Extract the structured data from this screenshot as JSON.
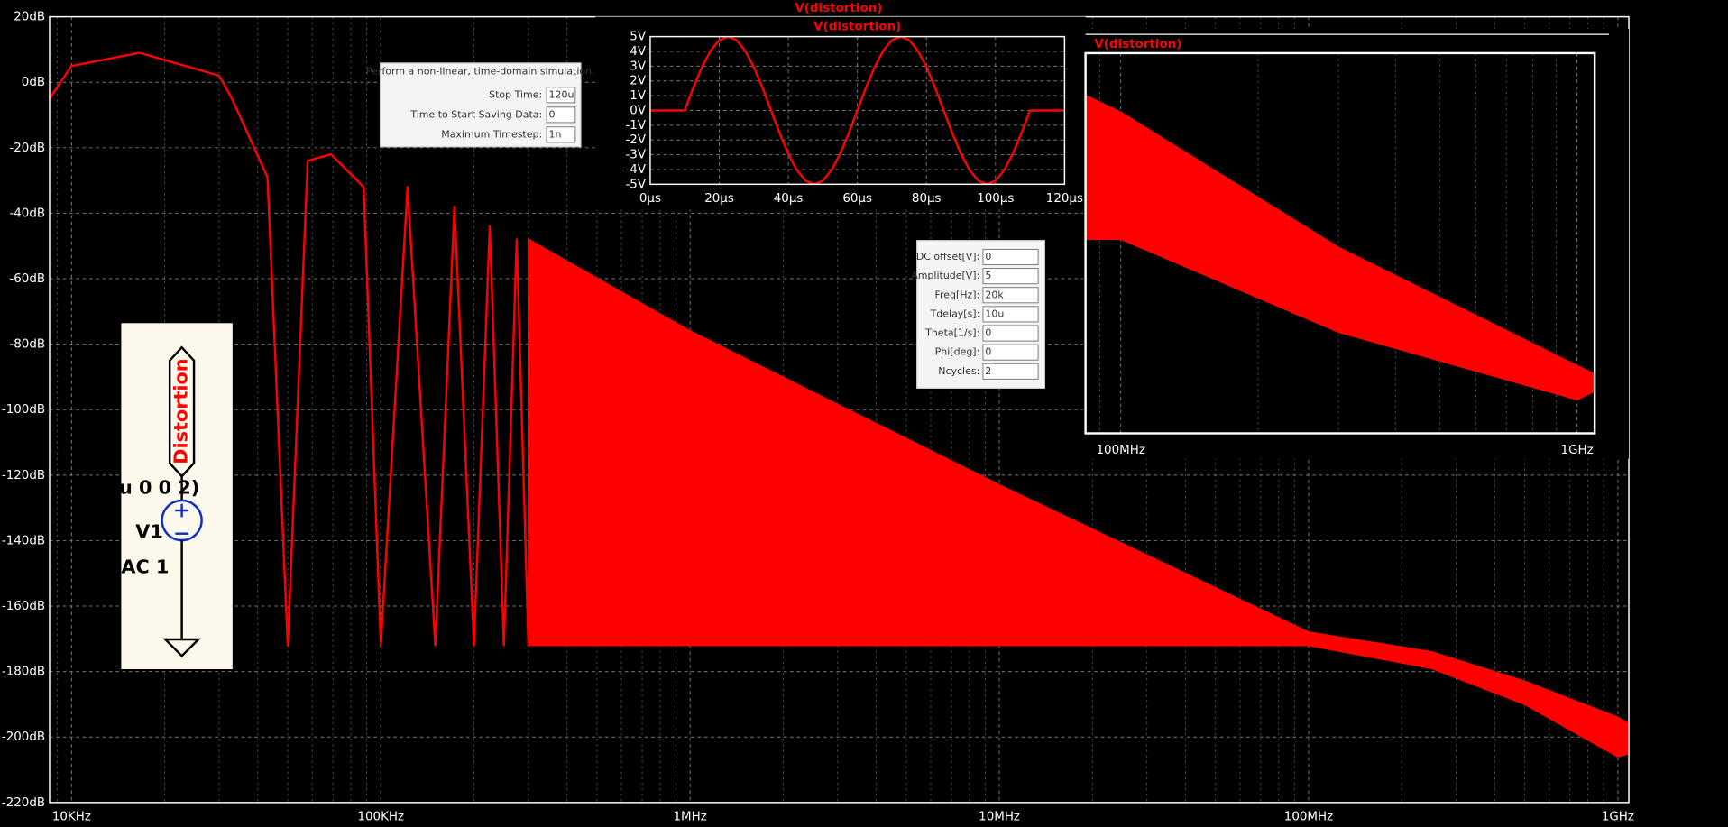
{
  "chart_data": [
    {
      "type": "line",
      "title": "V(distortion)",
      "xscale": "log",
      "xlim": [
        8490,
        1085000000
      ],
      "ylim": [
        -220,
        20
      ],
      "xticks": [
        {
          "value": 10000,
          "label": "10KHz"
        },
        {
          "value": 100000,
          "label": "100KHz"
        },
        {
          "value": 1000000,
          "label": "1MHz"
        },
        {
          "value": 10000000,
          "label": "10MHz"
        },
        {
          "value": 100000000,
          "label": "100MHz"
        },
        {
          "value": 1000000000,
          "label": "1GHz"
        }
      ],
      "yticks": [
        {
          "value": 20,
          "label": "20dB"
        },
        {
          "value": 0,
          "label": "0dB"
        },
        {
          "value": -20,
          "label": "-20dB"
        },
        {
          "value": -40,
          "label": "-40dB"
        },
        {
          "value": -60,
          "label": "-60dB"
        },
        {
          "value": -80,
          "label": "-80dB"
        },
        {
          "value": -100,
          "label": "-100dB"
        },
        {
          "value": -120,
          "label": "-120dB"
        },
        {
          "value": -140,
          "label": "-140dB"
        },
        {
          "value": -160,
          "label": "-160dB"
        },
        {
          "value": -180,
          "label": "-180dB"
        },
        {
          "value": -200,
          "label": "-200dB"
        },
        {
          "value": -220,
          "label": "-220dB"
        }
      ],
      "grid": true,
      "x": [
        8490,
        10000,
        16600,
        30000,
        33000,
        43000,
        50000,
        58000,
        69000,
        88000,
        100000,
        122000,
        150000,
        173000,
        200000,
        225000,
        250000,
        275000,
        300000
      ],
      "series": [
        {
          "color": "#ff0000",
          "values": [
            -5,
            5,
            9,
            2,
            -5,
            -29,
            -172,
            -24,
            -22,
            -32,
            -172,
            -32,
            -172,
            -38,
            -172,
            -44,
            -172,
            -48,
            -172
          ]
        }
      ],
      "band": {
        "color": "#ff0000",
        "x": [
          300000,
          1000000,
          10000000,
          100000000,
          250000000,
          500000000,
          1000000000,
          1085000000
        ],
        "upper": [
          -48,
          -76,
          -123,
          -168,
          -174,
          -183,
          -194,
          -196
        ],
        "lower": [
          -172,
          -172,
          -172,
          -172,
          -179,
          -190,
          -206,
          -205
        ]
      }
    },
    {
      "type": "line",
      "title": "V(distortion)",
      "xlim": [
        0,
        120
      ],
      "ylim": [
        -5,
        5
      ],
      "xticks": [
        {
          "value": 0,
          "label": "0µs"
        },
        {
          "value": 20,
          "label": "20µs"
        },
        {
          "value": 40,
          "label": "40µs"
        },
        {
          "value": 60,
          "label": "60µs"
        },
        {
          "value": 80,
          "label": "80µs"
        },
        {
          "value": 100,
          "label": "100µs"
        },
        {
          "value": 120,
          "label": "120µs"
        }
      ],
      "yticks": [
        {
          "value": 5,
          "label": "5V"
        },
        {
          "value": 4,
          "label": "4V"
        },
        {
          "value": 3,
          "label": "3V"
        },
        {
          "value": 2,
          "label": "2V"
        },
        {
          "value": 1,
          "label": "1V"
        },
        {
          "value": 0,
          "label": "0V"
        },
        {
          "value": -1,
          "label": "-1V"
        },
        {
          "value": -2,
          "label": "-2V"
        },
        {
          "value": -3,
          "label": "-3V"
        },
        {
          "value": -4,
          "label": "-4V"
        },
        {
          "value": -5,
          "label": "-5V"
        }
      ],
      "grid": true,
      "x": [
        0,
        10,
        12.5,
        15,
        17.5,
        20,
        22.5,
        25,
        27.5,
        30,
        32.5,
        35,
        37.5,
        40,
        42.5,
        45,
        47.5,
        50,
        52.5,
        55,
        57.5,
        60,
        62.5,
        65,
        67.5,
        70,
        72.5,
        75,
        77.5,
        80,
        82.5,
        85,
        87.5,
        90,
        92.5,
        95,
        97.5,
        100,
        102.5,
        105,
        107.5,
        110,
        120
      ],
      "series": [
        {
          "color": "#ff0000",
          "values": [
            0,
            0,
            1.55,
            2.94,
            4.05,
            4.76,
            5,
            4.76,
            4.05,
            2.94,
            1.55,
            0,
            -1.55,
            -2.94,
            -4.05,
            -4.76,
            -5,
            -4.76,
            -4.05,
            -2.94,
            -1.55,
            0,
            1.55,
            2.94,
            4.05,
            4.76,
            5,
            4.76,
            4.05,
            2.94,
            1.55,
            0,
            -1.55,
            -2.94,
            -4.05,
            -4.76,
            -5,
            -4.76,
            -4.05,
            -2.94,
            -1.55,
            0,
            0
          ]
        }
      ]
    },
    {
      "type": "band",
      "title": "V(distortion)",
      "xscale": "log",
      "xlim": [
        83700000,
        1093000000
      ],
      "ylim": [
        -205,
        -160
      ],
      "xticks": [
        {
          "value": 100000000,
          "label": "100MHz"
        },
        {
          "value": 1000000000,
          "label": "1GHz"
        }
      ],
      "grid": true,
      "band": {
        "color": "#ff0000",
        "x": [
          83700000,
          100000000,
          300000000,
          1000000000,
          1093000000
        ],
        "upper": [
          -165,
          -167,
          -183,
          -197,
          -198
        ],
        "lower": [
          -182,
          -182,
          -193,
          -201,
          -200
        ]
      }
    }
  ],
  "transient_dialog": {
    "title": "Perform a non-linear, time-domain simulation.",
    "fields": [
      {
        "label": "Stop Time:",
        "value": "120u"
      },
      {
        "label": "Time to Start Saving Data:",
        "value": "0"
      },
      {
        "label": "Maximum Timestep:",
        "value": "1n"
      }
    ]
  },
  "source_dialog": {
    "fields": [
      {
        "label": "DC offset[V]:",
        "value": "0"
      },
      {
        "label": "Amplitude[V]:",
        "value": "5"
      },
      {
        "label": "Freq[Hz]:",
        "value": "20k"
      },
      {
        "label": "Tdelay[s]:",
        "value": "10u"
      },
      {
        "label": "Theta[1/s]:",
        "value": "0"
      },
      {
        "label": "Phi[deg]:",
        "value": "0"
      },
      {
        "label": "Ncycles:",
        "value": "2"
      }
    ]
  },
  "schematic": {
    "net_label": "Distortion",
    "value_text": "u 0 0 2)",
    "instance": "V1",
    "ac_text": "AC 1"
  }
}
